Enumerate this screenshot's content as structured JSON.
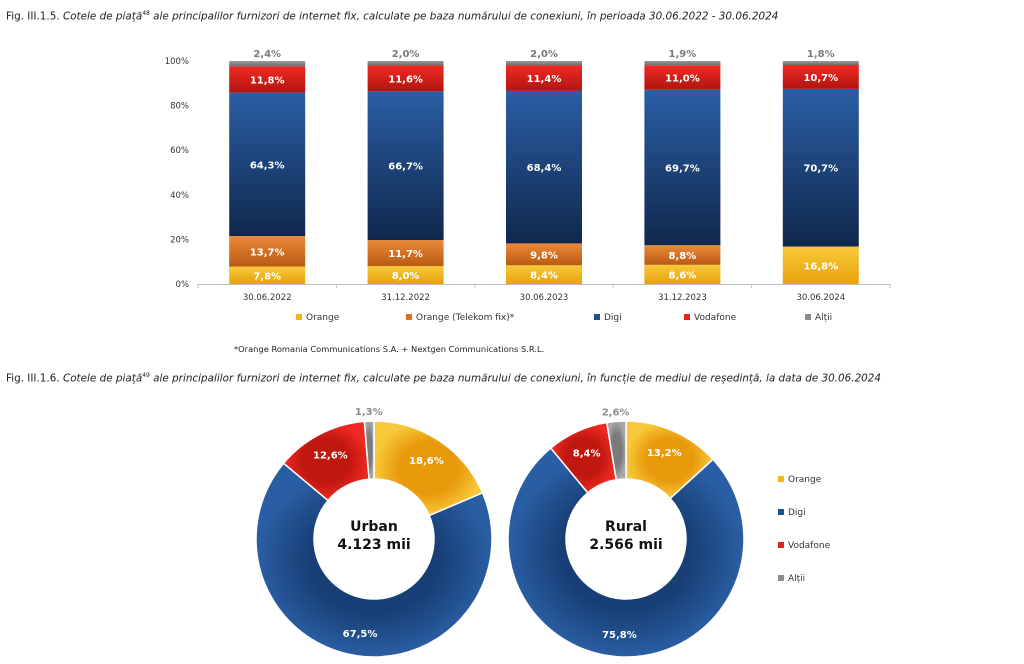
{
  "captions": {
    "fig1_prefix": "Fig. III.1.5. ",
    "fig1_italic_a": "Cotele de piață",
    "fig1_sup": "48",
    "fig1_italic_b": " ale principalilor furnizori de internet fix, calculate pe baza numărului de conexiuni, în perioada 30.06.2022 - 30.06.2024",
    "fig2_prefix": "Fig. III.1.6. ",
    "fig2_italic_a": "Cotele de piață",
    "fig2_sup": "49",
    "fig2_italic_b": " ale principalilor furnizori de internet fix, calculate pe baza numărului de conexiuni, în funcție de mediul de reședință, la data de 30.06.2024"
  },
  "footnote": "*Orange Romania Communications S.A. + Nextgen Communications S.R.L.",
  "colors": {
    "orange": "#f2b51c",
    "telekom": "#e0701e",
    "digi": "#1f4e8c",
    "vodafone": "#e2231a",
    "altii": "#8c8c8c"
  },
  "chart_data": [
    {
      "type": "bar",
      "stacked": true,
      "categories": [
        "30.06.2022",
        "31.12.2022",
        "30.06.2023",
        "31.12.2023",
        "30.06.2024"
      ],
      "ylim": [
        0,
        100
      ],
      "yticks": [
        "0%",
        "20%",
        "40%",
        "60%",
        "80%",
        "100%"
      ],
      "legend_position": "bottom",
      "series": [
        {
          "name": "Orange",
          "color": "#f2b51c",
          "values": [
            7.8,
            8.0,
            8.4,
            8.6,
            16.8
          ],
          "labels": [
            "7,8%",
            "8,0%",
            "8,4%",
            "8,6%",
            "16,8%"
          ]
        },
        {
          "name": "Orange (Telekom fix)*",
          "color": "#e0701e",
          "values": [
            13.7,
            11.7,
            9.8,
            8.8,
            0
          ],
          "labels": [
            "13,7%",
            "11,7%",
            "9,8%",
            "8,8%",
            ""
          ]
        },
        {
          "name": "Digi",
          "color": "#1f4e8c",
          "values": [
            64.3,
            66.7,
            68.4,
            69.7,
            70.7
          ],
          "labels": [
            "64,3%",
            "66,7%",
            "68,4%",
            "69,7%",
            "70,7%"
          ]
        },
        {
          "name": "Vodafone",
          "color": "#e2231a",
          "values": [
            11.8,
            11.6,
            11.4,
            11.0,
            10.7
          ],
          "labels": [
            "11,8%",
            "11,6%",
            "11,4%",
            "11,0%",
            "10,7%"
          ]
        },
        {
          "name": "Alții",
          "color": "#8c8c8c",
          "values": [
            2.4,
            2.0,
            2.0,
            1.9,
            1.8
          ],
          "labels": [
            "2,4%",
            "2,0%",
            "2,0%",
            "1,9%",
            "1,8%"
          ]
        }
      ]
    },
    {
      "type": "pie",
      "donut": true,
      "legend_position": "right",
      "legend": [
        "Orange",
        "Digi",
        "Vodafone",
        "Alții"
      ],
      "charts": [
        {
          "center_title": "Urban",
          "center_value": "4.123 mii",
          "slices": [
            {
              "name": "Orange",
              "value": 18.6,
              "label": "18,6%",
              "color": "#f2b51c"
            },
            {
              "name": "Digi",
              "value": 67.5,
              "label": "67,5%",
              "color": "#1f4e8c"
            },
            {
              "name": "Vodafone",
              "value": 12.6,
              "label": "12,6%",
              "color": "#e2231a"
            },
            {
              "name": "Alții",
              "value": 1.3,
              "label": "1,3%",
              "color": "#8c8c8c"
            }
          ]
        },
        {
          "center_title": "Rural",
          "center_value": "2.566 mii",
          "slices": [
            {
              "name": "Orange",
              "value": 13.2,
              "label": "13,2%",
              "color": "#f2b51c"
            },
            {
              "name": "Digi",
              "value": 75.8,
              "label": "75,8%",
              "color": "#1f4e8c"
            },
            {
              "name": "Vodafone",
              "value": 8.4,
              "label": "8,4%",
              "color": "#e2231a"
            },
            {
              "name": "Alții",
              "value": 2.6,
              "label": "2,6%",
              "color": "#8c8c8c"
            }
          ]
        }
      ]
    }
  ]
}
